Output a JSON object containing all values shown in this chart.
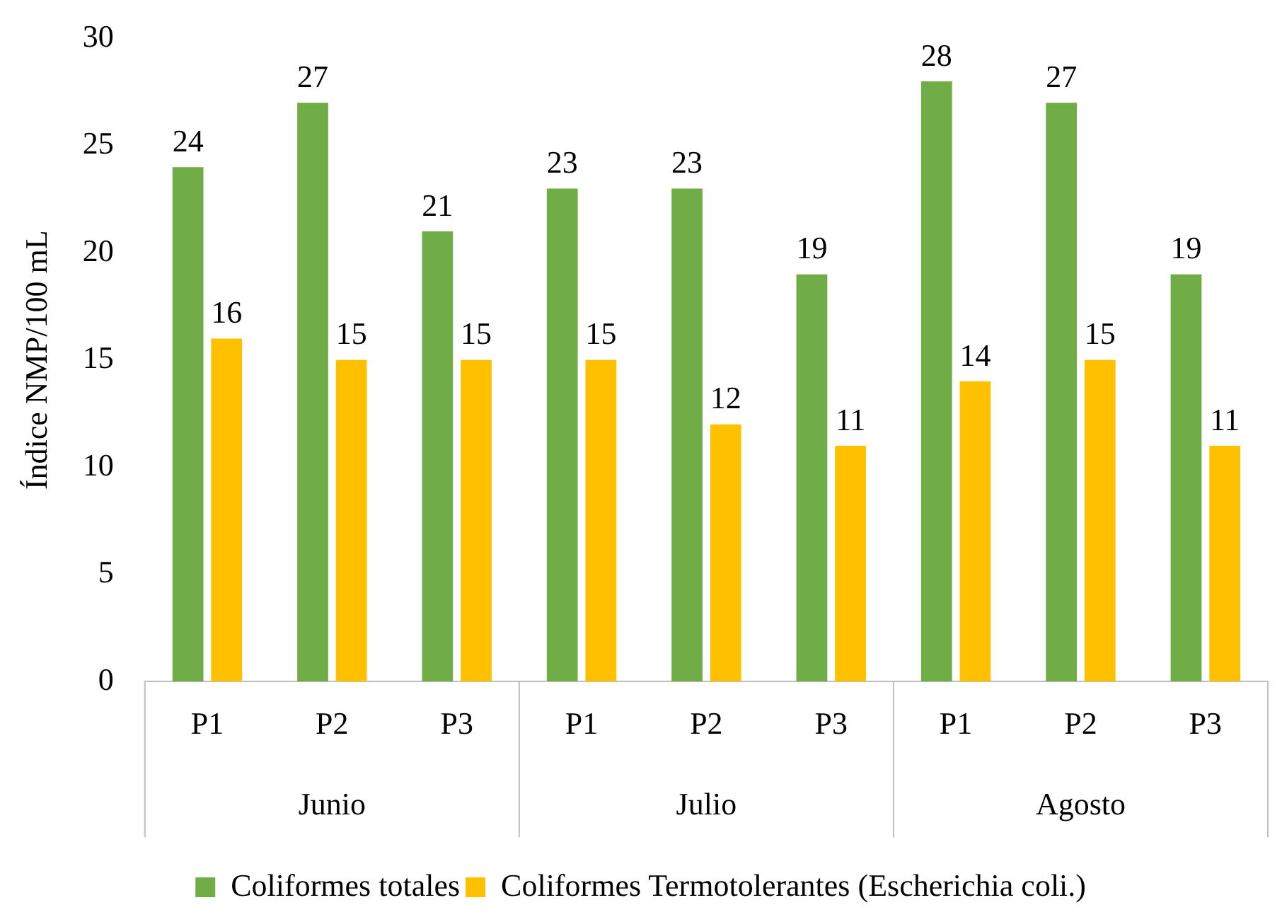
{
  "chart_data": {
    "type": "bar",
    "ylabel": "Índice NMP/100 mL",
    "categories": [
      "P1",
      "P2",
      "P3",
      "P1",
      "P2",
      "P3",
      "P1",
      "P2",
      "P3"
    ],
    "series": [
      {
        "name": "Coliformes totales",
        "color": "#70ad47",
        "values": [
          24,
          27,
          21,
          23,
          23,
          19,
          28,
          27,
          19
        ]
      },
      {
        "name": "Coliformes Termotolerantes (Escherichia coli.)",
        "color": "#ffc000",
        "values": [
          16,
          15,
          15,
          15,
          12,
          11,
          14,
          15,
          11
        ]
      }
    ],
    "annotations": [
      "Junio",
      "Julio",
      "Agosto"
    ],
    "ylim": [
      0,
      30
    ],
    "yticks": [
      0,
      5,
      10,
      15,
      20,
      25,
      30
    ],
    "grid": false,
    "legend": "bottom",
    "data_labels": true
  }
}
